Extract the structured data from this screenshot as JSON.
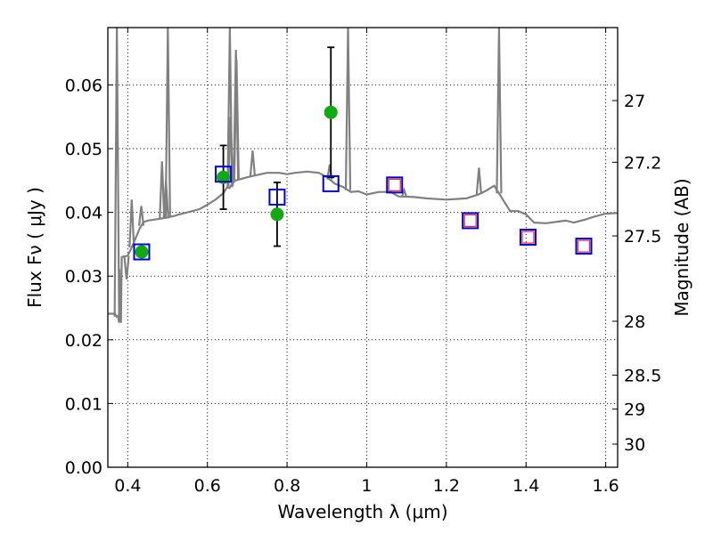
{
  "chart_data": {
    "type": "scatter",
    "xlabel": "Wavelength  λ (μm)",
    "ylabel": "Flux  Fν  ( μJy )",
    "y2label": "Magnitude (AB)",
    "xlim": [
      0.35,
      1.63
    ],
    "ylim": [
      0.0,
      0.069
    ],
    "x_ticks": [
      0.4,
      0.6,
      0.8,
      1.0,
      1.2,
      1.4,
      1.6
    ],
    "x_tick_labels": [
      "0.4",
      "0.6",
      "0.8",
      "1",
      "1.2",
      "1.4",
      "1.6"
    ],
    "y_ticks": [
      0.0,
      0.01,
      0.02,
      0.03,
      0.04,
      0.05,
      0.06
    ],
    "y_tick_labels": [
      "0.00",
      "0.01",
      "0.02",
      "0.03",
      "0.04",
      "0.05",
      "0.06"
    ],
    "mag_ticks": [
      27,
      27.2,
      27.5,
      28,
      28.5,
      29,
      30
    ],
    "mag_tick_labels": [
      "27",
      "27.2",
      "27.5",
      "28",
      "28.5",
      "29",
      "30"
    ],
    "grid": true,
    "series": [
      {
        "kind": "line",
        "color": "#808080",
        "x": [
          0.35,
          0.368,
          0.372,
          0.376,
          0.378,
          0.379,
          0.38,
          0.381,
          0.383,
          0.385,
          0.4,
          0.41,
          0.42,
          0.43,
          0.44,
          0.45,
          0.46,
          0.48,
          0.5,
          0.52,
          0.53,
          0.55,
          0.58,
          0.6,
          0.62,
          0.64,
          0.65,
          0.655,
          0.66,
          0.67,
          0.7,
          0.72,
          0.75,
          0.78,
          0.8,
          0.82,
          0.85,
          0.88,
          0.9,
          0.92,
          0.94,
          0.96,
          0.98,
          1.0,
          1.03,
          1.06,
          1.08,
          1.12,
          1.15,
          1.2,
          1.25,
          1.28,
          1.3,
          1.32,
          1.36,
          1.38,
          1.4,
          1.42,
          1.45,
          1.5,
          1.52,
          1.55,
          1.57,
          1.6,
          1.63
        ],
        "y": [
          0.0241,
          0.0241,
          0.0236,
          0.0238,
          0.0228,
          0.031,
          0.0235,
          0.024,
          0.0228,
          0.033,
          0.0332,
          0.0345,
          0.036,
          0.0375,
          0.0385,
          0.0387,
          0.0388,
          0.039,
          0.0392,
          0.0395,
          0.0397,
          0.04,
          0.0405,
          0.0412,
          0.042,
          0.043,
          0.044,
          0.0438,
          0.0443,
          0.045,
          0.0455,
          0.0458,
          0.0462,
          0.0462,
          0.046,
          0.0462,
          0.0464,
          0.0462,
          0.0455,
          0.0445,
          0.044,
          0.0432,
          0.0433,
          0.0428,
          0.0432,
          0.0432,
          0.0425,
          0.0424,
          0.0422,
          0.042,
          0.0422,
          0.0428,
          0.0434,
          0.0442,
          0.0402,
          0.0402,
          0.0397,
          0.0384,
          0.0383,
          0.0387,
          0.0384,
          0.0389,
          0.0393,
          0.0398,
          0.0399
        ]
      },
      {
        "kind": "emission_lines",
        "color": "#808080",
        "x": [
          0.3727,
          0.397,
          0.41,
          0.434,
          0.486,
          0.4959,
          0.5007,
          0.6563,
          0.6583,
          0.6716,
          0.6731,
          0.7135,
          0.9069,
          0.9531,
          1.0941,
          1.2818,
          1.3322
        ],
        "y": [
          0.069,
          0.0295,
          0.042,
          0.041,
          0.048,
          0.045,
          0.069,
          0.069,
          0.055,
          0.0655,
          0.064,
          0.0497,
          0.0475,
          0.069,
          0.0435,
          0.047,
          0.069
        ]
      },
      {
        "kind": "points",
        "marker": "circle",
        "color": "#11aa11",
        "x": [
          0.435,
          0.64,
          0.775,
          0.91
        ],
        "y": [
          0.0338,
          0.0455,
          0.0397,
          0.0557
        ],
        "yerr": [
          null,
          0.005,
          0.005,
          0.0102
        ]
      },
      {
        "kind": "points",
        "marker": "open-square",
        "color": "#0000dd",
        "x": [
          0.435,
          0.64,
          0.775,
          0.91,
          1.07,
          1.26,
          1.405,
          1.545
        ],
        "y": [
          0.0338,
          0.046,
          0.0424,
          0.0445,
          0.0443,
          0.0387,
          0.0361,
          0.0347
        ]
      },
      {
        "kind": "points",
        "marker": "open-square",
        "color": "#ee3333",
        "x": [
          1.07,
          1.26,
          1.405,
          1.545
        ],
        "y": [
          0.0443,
          0.0387,
          0.0361,
          0.0347
        ]
      }
    ]
  }
}
